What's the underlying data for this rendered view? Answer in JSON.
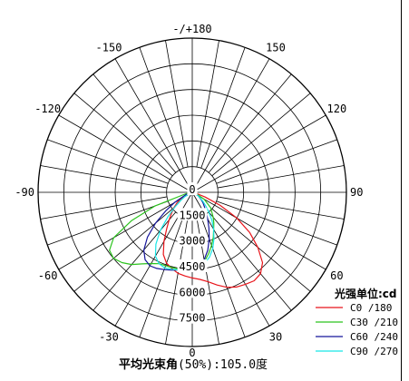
{
  "chart_data": {
    "type": "polar-line",
    "title": "",
    "angle_labels": [
      {
        "angle": 180,
        "text": "-/+180"
      },
      {
        "angle": 150,
        "text": "150"
      },
      {
        "angle": -150,
        "text": "-150"
      },
      {
        "angle": 120,
        "text": "120"
      },
      {
        "angle": -120,
        "text": "-120"
      },
      {
        "angle": 90,
        "text": "90"
      },
      {
        "angle": -90,
        "text": "-90"
      },
      {
        "angle": 60,
        "text": "60"
      },
      {
        "angle": -60,
        "text": "-60"
      },
      {
        "angle": 30,
        "text": "30"
      },
      {
        "angle": -30,
        "text": "-30"
      },
      {
        "angle": 0,
        "text": "0"
      }
    ],
    "radial_max": 9000,
    "radial_ticks": [
      {
        "value": 0,
        "label": "0"
      },
      {
        "value": 1500,
        "label": "1500"
      },
      {
        "value": 3000,
        "label": "3000"
      },
      {
        "value": 4500,
        "label": "4500"
      },
      {
        "value": 6000,
        "label": "6000"
      },
      {
        "value": 7500,
        "label": "7500"
      }
    ],
    "radial_gridlines": [
      1500,
      3000,
      4500,
      6000,
      7500,
      9000
    ],
    "angular_gridline_step_deg": 10,
    "legend_title": "光强单位:cd",
    "legend_position": "bottom-right",
    "series": [
      {
        "name": "C0  /180",
        "color": "#e8141a",
        "angles": [
          -90,
          -80,
          -70,
          -60,
          -55,
          -50,
          -45,
          -40,
          -35,
          -30,
          -25,
          -20,
          -15,
          -10,
          -5,
          0,
          5,
          10,
          15,
          20,
          25,
          30,
          35,
          40,
          45,
          50,
          55,
          60,
          65,
          70,
          80,
          90
        ],
        "values": [
          0,
          30,
          200,
          800,
          1100,
          1400,
          1700,
          2100,
          2600,
          3300,
          4000,
          4400,
          4600,
          4800,
          4900,
          5000,
          5100,
          5300,
          5600,
          5900,
          6100,
          6200,
          6300,
          6200,
          5800,
          5000,
          4100,
          3000,
          1800,
          800,
          150,
          0
        ]
      },
      {
        "name": "C30 /210",
        "color": "#2cc31e",
        "angles": [
          -90,
          -80,
          -70,
          -65,
          -60,
          -55,
          -50,
          -45,
          -40,
          -35,
          -30,
          -25,
          -20,
          -15,
          -10,
          -5,
          0,
          5,
          10,
          15,
          20,
          25,
          30,
          35,
          40,
          50,
          60,
          70,
          80,
          90
        ],
        "values": [
          0,
          300,
          2300,
          3900,
          5300,
          5900,
          6000,
          5800,
          5500,
          5100,
          4800,
          4600,
          4550,
          4550,
          4550,
          4550,
          4500,
          4350,
          4100,
          3700,
          3300,
          2900,
          2500,
          2200,
          1900,
          1400,
          800,
          250,
          50,
          0
        ]
      },
      {
        "name": "C60 /240",
        "color": "#15159a",
        "angles": [
          -90,
          -80,
          -70,
          -60,
          -55,
          -50,
          -45,
          -40,
          -35,
          -30,
          -25,
          -20,
          -15,
          -10,
          -5,
          0,
          5,
          10,
          15,
          20,
          25,
          30,
          35,
          40,
          45,
          50,
          60,
          70,
          80,
          90
        ],
        "values": [
          0,
          80,
          400,
          1200,
          1900,
          2800,
          3700,
          4400,
          4800,
          4950,
          4900,
          4800,
          4700,
          4600,
          4550,
          4500,
          4300,
          4000,
          3500,
          2900,
          2300,
          1800,
          1400,
          1100,
          900,
          700,
          400,
          150,
          30,
          0
        ]
      },
      {
        "name": "C90 /270",
        "color": "#18e6e6",
        "angles": [
          -90,
          -80,
          -70,
          -60,
          -55,
          -50,
          -45,
          -40,
          -35,
          -30,
          -25,
          -20,
          -15,
          -10,
          -5,
          0,
          5,
          10,
          15,
          20,
          25,
          30,
          35,
          40,
          45,
          50,
          60,
          70,
          80,
          90
        ],
        "values": [
          0,
          40,
          150,
          500,
          800,
          1300,
          2000,
          2900,
          3700,
          4300,
          4600,
          4700,
          4650,
          4600,
          4550,
          4500,
          4400,
          4200,
          3900,
          3500,
          3000,
          2500,
          2000,
          1500,
          1100,
          800,
          400,
          120,
          20,
          0
        ]
      }
    ],
    "footer": {
      "prefix": "平均光束角",
      "pct": "(50%)",
      "value": ":105.0度"
    }
  }
}
